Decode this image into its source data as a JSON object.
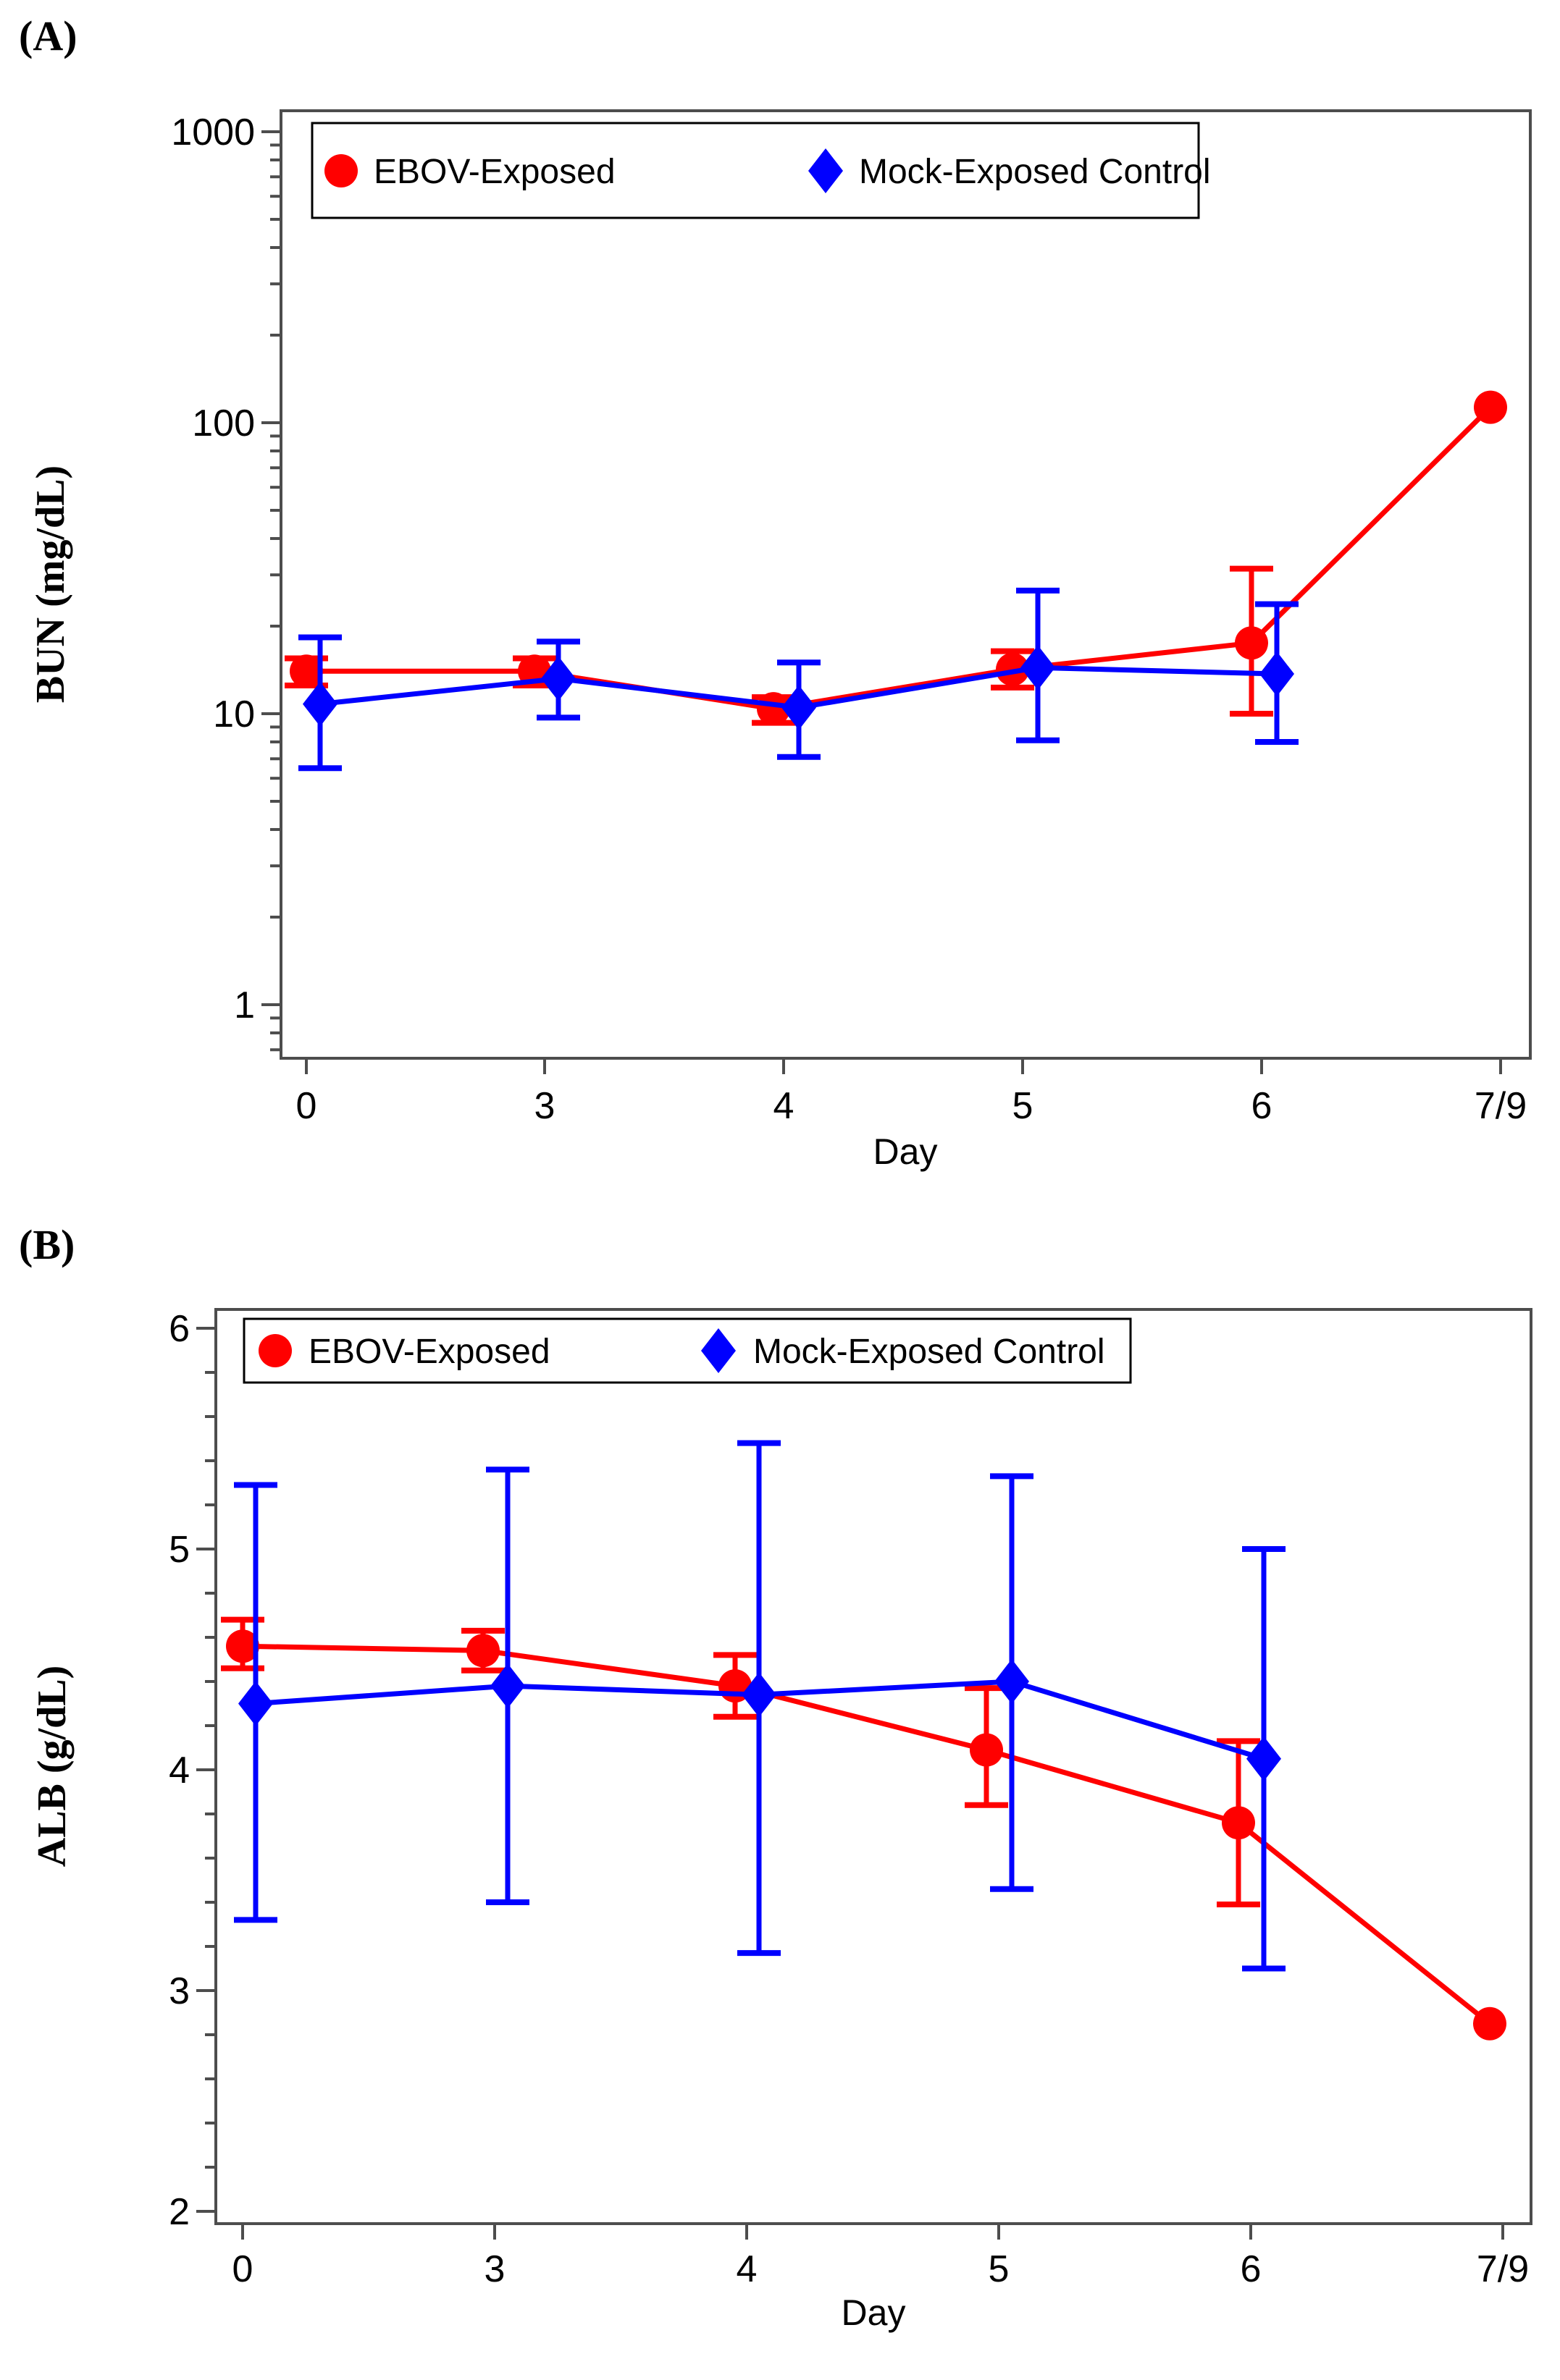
{
  "figure": {
    "panel_a_label": "(A)",
    "panel_b_label": "(B)"
  },
  "colors": {
    "ebov": "#ff0000",
    "mock": "#0000ff",
    "frame": "#4d4d4d",
    "text": "#000000"
  },
  "chart_data": [
    {
      "id": "A",
      "type": "line",
      "panel_label": "(A)",
      "xlabel": "Day",
      "ylabel": "BUN (mg/dL)",
      "x_categories": [
        "0",
        "3",
        "4",
        "5",
        "6",
        "7/9"
      ],
      "y_scale": "log10",
      "ylim": [
        1,
        1000
      ],
      "y_ticks": [
        1,
        10,
        100,
        1000
      ],
      "y_tick_labels": [
        "1",
        "10",
        "100",
        "1000"
      ],
      "grid": false,
      "legend_position": "top-inside",
      "series": [
        {
          "name": "EBOV-Exposed",
          "color": "#ff0000",
          "marker": "circle",
          "values": [
            14,
            14,
            10.4,
            14.2,
            17.5,
            113
          ],
          "err_low": [
            12.5,
            12.5,
            9.3,
            12.3,
            10.0,
            null
          ],
          "err_high": [
            15.5,
            15.5,
            11.4,
            16.4,
            31.5,
            null
          ]
        },
        {
          "name": "Mock-Exposed Control",
          "color": "#0000ff",
          "marker": "diamond",
          "values": [
            10.8,
            13.2,
            10.5,
            14.4,
            13.7,
            null
          ],
          "err_low": [
            6.5,
            9.7,
            7.1,
            8.1,
            8.0,
            null
          ],
          "err_high": [
            18.3,
            17.7,
            15.0,
            26.5,
            23.8,
            null
          ]
        }
      ]
    },
    {
      "id": "B",
      "type": "line",
      "panel_label": "(B)",
      "xlabel": "Day",
      "ylabel": "ALB (g/dL)",
      "x_categories": [
        "0",
        "3",
        "4",
        "5",
        "6",
        "7/9"
      ],
      "y_scale": "linear",
      "ylim": [
        2,
        6
      ],
      "y_ticks": [
        2,
        3,
        4,
        5,
        6
      ],
      "y_tick_labels": [
        "2",
        "3",
        "4",
        "5",
        "6"
      ],
      "grid": false,
      "legend_position": "top-inside",
      "series": [
        {
          "name": "EBOV-Exposed",
          "color": "#ff0000",
          "marker": "circle",
          "values": [
            4.56,
            4.54,
            4.38,
            4.09,
            3.76,
            2.85
          ],
          "err_low": [
            4.46,
            4.45,
            4.24,
            3.84,
            3.39,
            null
          ],
          "err_high": [
            4.68,
            4.63,
            4.52,
            4.37,
            4.13,
            null
          ]
        },
        {
          "name": "Mock-Exposed Control",
          "color": "#0000ff",
          "marker": "diamond",
          "values": [
            4.3,
            4.38,
            4.34,
            4.4,
            4.05,
            null
          ],
          "err_low": [
            3.32,
            3.4,
            3.17,
            3.46,
            3.1,
            null
          ],
          "err_high": [
            5.29,
            5.36,
            5.48,
            5.33,
            5.0,
            null
          ]
        }
      ]
    }
  ]
}
